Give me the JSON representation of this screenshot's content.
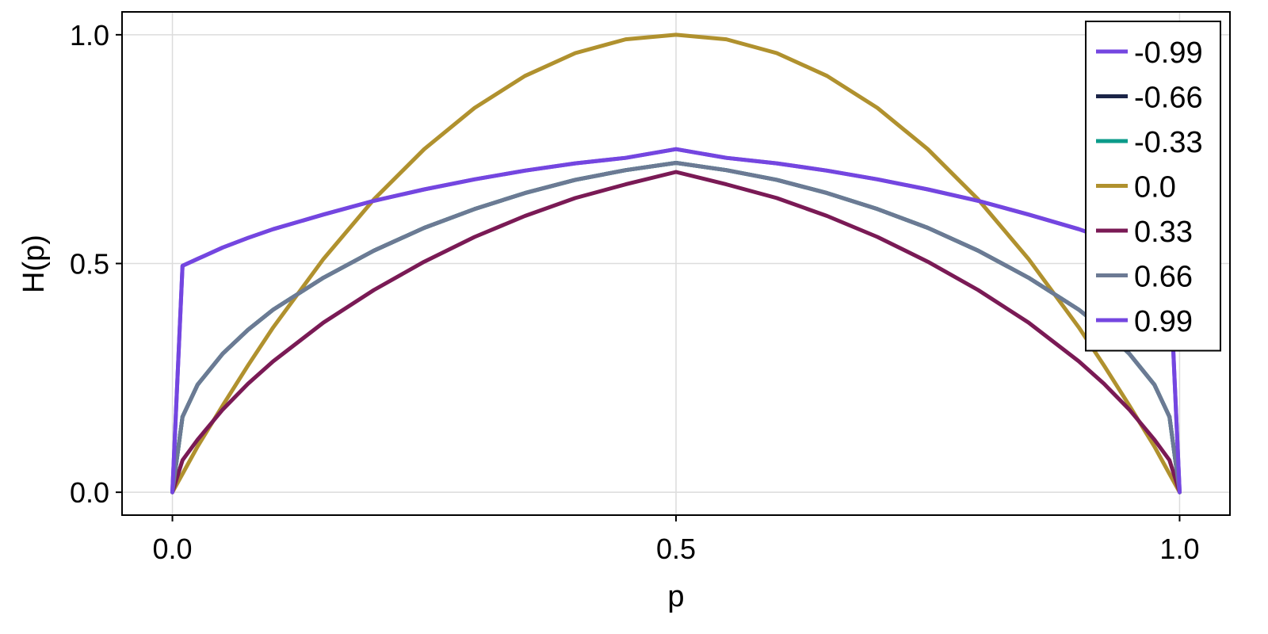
{
  "chart_data": {
    "type": "line",
    "title": "",
    "xlabel": "p",
    "ylabel": "H(p)",
    "xlim": [
      -0.05,
      1.05
    ],
    "ylim": [
      -0.05,
      1.05
    ],
    "xticks": [
      {
        "value": 0.0,
        "label": "0.0"
      },
      {
        "value": 0.5,
        "label": "0.5"
      },
      {
        "value": 1.0,
        "label": "1.0"
      }
    ],
    "yticks": [
      {
        "value": 0.0,
        "label": "0.0"
      },
      {
        "value": 0.5,
        "label": "0.5"
      },
      {
        "value": 1.0,
        "label": "1.0"
      }
    ],
    "grid": true,
    "legend_position": "top-right",
    "x": [
      0.0,
      0.01,
      0.025,
      0.05,
      0.075,
      0.1,
      0.15,
      0.2,
      0.25,
      0.3,
      0.35,
      0.4,
      0.45,
      0.5,
      0.55,
      0.6,
      0.65,
      0.7,
      0.75,
      0.8,
      0.85,
      0.9,
      0.925,
      0.95,
      0.975,
      0.99,
      1.0
    ],
    "series": [
      {
        "name": "-0.99",
        "color": "#7446e0",
        "values": [
          0.0,
          0.495,
          0.51,
          0.535,
          0.556,
          0.575,
          0.607,
          0.637,
          0.662,
          0.684,
          0.703,
          0.719,
          0.731,
          0.75,
          0.731,
          0.719,
          0.703,
          0.684,
          0.662,
          0.637,
          0.607,
          0.575,
          0.556,
          0.535,
          0.51,
          0.495,
          0.0
        ]
      },
      {
        "name": "-0.66",
        "color": "#1b2447",
        "values": [
          0.0,
          0.165,
          0.235,
          0.303,
          0.355,
          0.399,
          0.469,
          0.528,
          0.578,
          0.619,
          0.654,
          0.683,
          0.704,
          0.72,
          0.704,
          0.683,
          0.654,
          0.619,
          0.578,
          0.528,
          0.469,
          0.399,
          0.355,
          0.303,
          0.235,
          0.165,
          0.0
        ]
      },
      {
        "name": "-0.33",
        "color": "#0b9b8a",
        "values": [
          0.0,
          0.165,
          0.235,
          0.303,
          0.355,
          0.399,
          0.469,
          0.528,
          0.578,
          0.619,
          0.654,
          0.683,
          0.704,
          0.72,
          0.704,
          0.683,
          0.654,
          0.619,
          0.578,
          0.528,
          0.469,
          0.399,
          0.355,
          0.303,
          0.235,
          0.165,
          0.0
        ]
      },
      {
        "name": "0.0",
        "color": "#b0912e",
        "values": [
          0.0,
          0.04,
          0.1,
          0.19,
          0.277,
          0.36,
          0.51,
          0.64,
          0.75,
          0.84,
          0.91,
          0.96,
          0.99,
          1.0,
          0.99,
          0.96,
          0.91,
          0.84,
          0.75,
          0.64,
          0.51,
          0.36,
          0.277,
          0.19,
          0.1,
          0.04,
          0.0
        ]
      },
      {
        "name": "0.33",
        "color": "#7a1a55",
        "values": [
          0.0,
          0.07,
          0.115,
          0.181,
          0.237,
          0.286,
          0.371,
          0.442,
          0.504,
          0.558,
          0.604,
          0.643,
          0.673,
          0.7,
          0.673,
          0.643,
          0.604,
          0.558,
          0.504,
          0.442,
          0.371,
          0.286,
          0.237,
          0.181,
          0.115,
          0.07,
          0.0
        ]
      },
      {
        "name": "0.66",
        "color": "#6c7a94",
        "values": [
          0.0,
          0.165,
          0.235,
          0.303,
          0.355,
          0.399,
          0.469,
          0.528,
          0.578,
          0.619,
          0.654,
          0.683,
          0.704,
          0.72,
          0.704,
          0.683,
          0.654,
          0.619,
          0.578,
          0.528,
          0.469,
          0.399,
          0.355,
          0.303,
          0.235,
          0.165,
          0.0
        ]
      },
      {
        "name": "0.99",
        "color": "#7446e0",
        "values": [
          0.0,
          0.495,
          0.51,
          0.535,
          0.556,
          0.575,
          0.607,
          0.637,
          0.662,
          0.684,
          0.703,
          0.719,
          0.731,
          0.75,
          0.731,
          0.719,
          0.703,
          0.684,
          0.662,
          0.637,
          0.607,
          0.575,
          0.556,
          0.535,
          0.51,
          0.495,
          0.0
        ]
      }
    ]
  }
}
